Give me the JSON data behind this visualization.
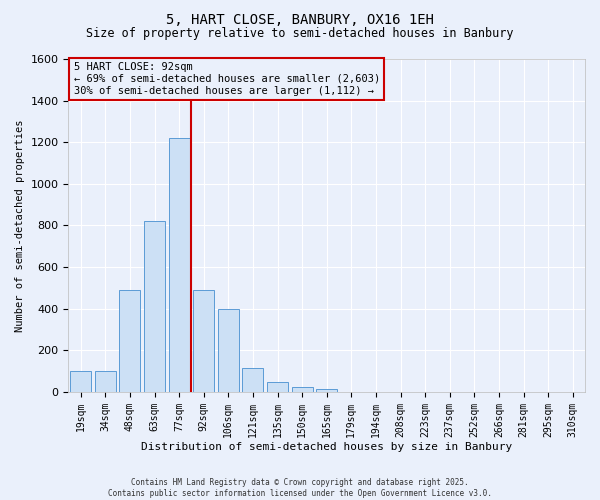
{
  "title": "5, HART CLOSE, BANBURY, OX16 1EH",
  "subtitle": "Size of property relative to semi-detached houses in Banbury",
  "xlabel": "Distribution of semi-detached houses by size in Banbury",
  "ylabel": "Number of semi-detached properties",
  "bar_labels": [
    "19sqm",
    "34sqm",
    "48sqm",
    "63sqm",
    "77sqm",
    "92sqm",
    "106sqm",
    "121sqm",
    "135sqm",
    "150sqm",
    "165sqm",
    "179sqm",
    "194sqm",
    "208sqm",
    "223sqm",
    "237sqm",
    "252sqm",
    "266sqm",
    "281sqm",
    "295sqm",
    "310sqm"
  ],
  "bar_values": [
    100,
    100,
    490,
    820,
    1220,
    490,
    400,
    115,
    50,
    25,
    15,
    0,
    0,
    0,
    0,
    0,
    0,
    0,
    0,
    0,
    0
  ],
  "property_label": "5 HART CLOSE: 92sqm",
  "annotation_line1": "← 69% of semi-detached houses are smaller (2,603)",
  "annotation_line2": "30% of semi-detached houses are larger (1,112) →",
  "bar_color": "#cce0f5",
  "bar_edge_color": "#5b9bd5",
  "vline_color": "#cc0000",
  "annotation_box_edge": "#cc0000",
  "bg_color": "#eaf0fb",
  "grid_color": "#ffffff",
  "ylim_max": 1600,
  "vline_index": 5,
  "footer_line1": "Contains HM Land Registry data © Crown copyright and database right 2025.",
  "footer_line2": "Contains public sector information licensed under the Open Government Licence v3.0."
}
